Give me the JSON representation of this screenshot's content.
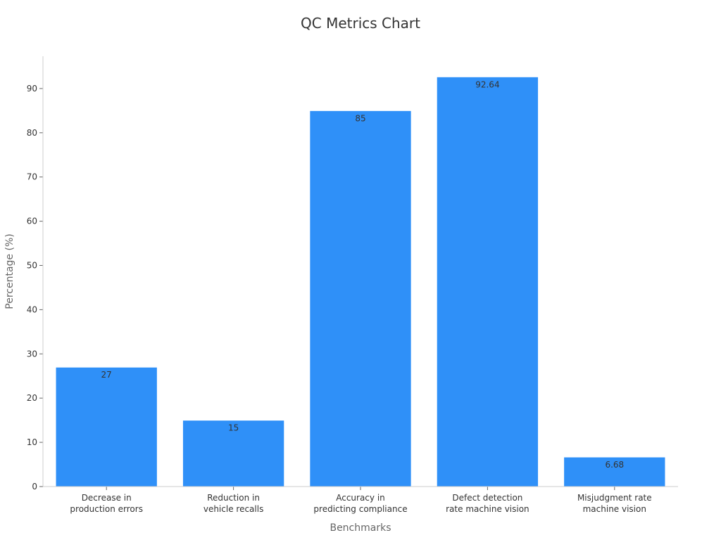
{
  "chart_data": {
    "type": "bar",
    "title": "QC Metrics Chart",
    "xlabel": "Benchmarks",
    "ylabel": "Percentage (%)",
    "categories": [
      [
        "Decrease in",
        "production errors"
      ],
      [
        "Reduction in",
        "vehicle recalls"
      ],
      [
        "Accuracy in",
        "predicting compliance"
      ],
      [
        "Defect detection",
        "rate machine vision"
      ],
      [
        "Misjudgment rate",
        "machine vision"
      ]
    ],
    "values": [
      27,
      15,
      85,
      92.64,
      6.68
    ],
    "data_labels": [
      "27",
      "15",
      "85",
      "92.64",
      "6.68"
    ],
    "ylim": [
      0,
      97.3
    ],
    "yticks": [
      0,
      10,
      20,
      30,
      40,
      50,
      60,
      70,
      80,
      90
    ],
    "bar_color": "#2f90f8",
    "grid": false,
    "legend": "none"
  }
}
